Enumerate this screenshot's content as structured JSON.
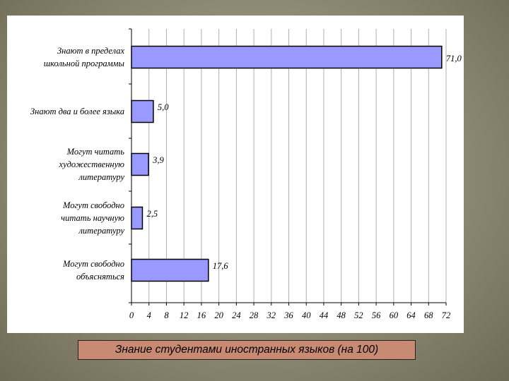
{
  "caption": "Знание студентами иностранных языков (на 100)",
  "chart_data": {
    "type": "bar",
    "orientation": "horizontal",
    "categories": [
      [
        "Знают в пределах",
        "школьной программы"
      ],
      [
        "Знают два и более языка"
      ],
      [
        "Могут читать",
        "художественную",
        "литературу"
      ],
      [
        "Могут свободно",
        "читать научную",
        "литературу"
      ],
      [
        "Могут свободно",
        "объясняться"
      ]
    ],
    "values": [
      71.0,
      5.0,
      3.9,
      2.5,
      17.6
    ],
    "value_labels": [
      "71,0",
      "5,0",
      "3,9",
      "2,5",
      "17,6"
    ],
    "xlim": [
      0,
      72
    ],
    "xticks": [
      0,
      4,
      8,
      12,
      16,
      20,
      24,
      28,
      32,
      36,
      40,
      44,
      48,
      52,
      56,
      60,
      64,
      68,
      72
    ],
    "grid": true,
    "colors": {
      "bar_fill": "#9999ff",
      "bar_stroke": "#000000",
      "grid": "#b0b0b0"
    }
  }
}
